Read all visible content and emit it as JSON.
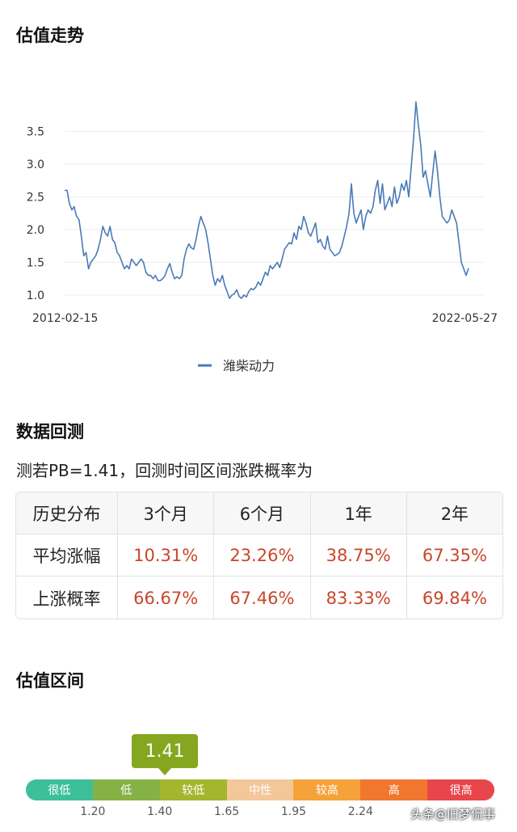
{
  "valuation_trend": {
    "title": "估值走势"
  },
  "backtest": {
    "title": "数据回测",
    "subtitle": "测若PB=1.41，回测时间区间涨跌概率为",
    "headers": [
      "历史分布",
      "3个月",
      "6个月",
      "1年",
      "2年"
    ],
    "rows": [
      {
        "label": "平均涨幅",
        "values": [
          "10.31%",
          "23.26%",
          "38.75%",
          "67.35%"
        ]
      },
      {
        "label": "上涨概率",
        "values": [
          "66.67%",
          "67.46%",
          "83.33%",
          "69.84%"
        ]
      }
    ]
  },
  "valuation_range": {
    "title": "估值区间",
    "current": "1.41",
    "segments": [
      {
        "label": "很低",
        "color": "#3dbf9b"
      },
      {
        "label": "低",
        "color": "#86b245"
      },
      {
        "label": "较低",
        "color": "#a3b62d"
      },
      {
        "label": "中性",
        "color": "#f3c79a"
      },
      {
        "label": "较高",
        "color": "#f6a23a"
      },
      {
        "label": "高",
        "color": "#f2772e"
      },
      {
        "label": "很高",
        "color": "#e8464a"
      }
    ],
    "ticks": [
      "1.20",
      "1.40",
      "1.65",
      "1.95",
      "2.24"
    ]
  },
  "watermark": "头条@旧梦侃事",
  "chart_data": {
    "type": "line",
    "title": "",
    "xlabel": "",
    "ylabel": "",
    "x_start": "2012-02-15",
    "x_end": "2022-05-27",
    "ylim": [
      0.9,
      4.0
    ],
    "yticks": [
      "1.0",
      "1.5",
      "2.0",
      "2.5",
      "3.0",
      "3.5"
    ],
    "grid": true,
    "legend": "bottom-center",
    "series": [
      {
        "name": "潍柴动力",
        "color": "#4a7ab8",
        "values": [
          2.6,
          2.6,
          2.4,
          2.3,
          2.35,
          2.2,
          2.15,
          1.9,
          1.6,
          1.65,
          1.4,
          1.5,
          1.55,
          1.6,
          1.7,
          1.85,
          2.05,
          1.95,
          1.9,
          2.05,
          1.85,
          1.8,
          1.65,
          1.6,
          1.5,
          1.4,
          1.45,
          1.4,
          1.55,
          1.5,
          1.45,
          1.5,
          1.55,
          1.5,
          1.35,
          1.3,
          1.3,
          1.25,
          1.3,
          1.22,
          1.22,
          1.25,
          1.3,
          1.4,
          1.48,
          1.35,
          1.25,
          1.28,
          1.25,
          1.3,
          1.55,
          1.7,
          1.78,
          1.72,
          1.7,
          1.85,
          2.05,
          2.2,
          2.1,
          2.0,
          1.8,
          1.55,
          1.3,
          1.15,
          1.25,
          1.2,
          1.3,
          1.15,
          1.05,
          0.95,
          1.0,
          1.02,
          1.08,
          0.98,
          0.95,
          1.0,
          0.97,
          1.05,
          1.1,
          1.08,
          1.12,
          1.2,
          1.15,
          1.25,
          1.35,
          1.3,
          1.45,
          1.4,
          1.45,
          1.5,
          1.42,
          1.55,
          1.7,
          1.75,
          1.8,
          1.78,
          1.95,
          1.85,
          2.05,
          2.0,
          2.2,
          2.1,
          1.95,
          1.9,
          2.0,
          2.1,
          1.8,
          1.85,
          1.75,
          1.7,
          1.9,
          1.7,
          1.65,
          1.6,
          1.62,
          1.65,
          1.75,
          1.9,
          2.05,
          2.25,
          2.7,
          2.25,
          2.1,
          2.2,
          2.3,
          2.0,
          2.2,
          2.3,
          2.25,
          2.35,
          2.6,
          2.75,
          2.4,
          2.7,
          2.3,
          2.4,
          2.5,
          2.35,
          2.65,
          2.4,
          2.5,
          2.7,
          2.6,
          2.75,
          2.5,
          2.95,
          3.4,
          3.95,
          3.6,
          3.3,
          2.8,
          2.9,
          2.7,
          2.5,
          2.85,
          3.2,
          2.9,
          2.5,
          2.2,
          2.15,
          2.1,
          2.15,
          2.3,
          2.2,
          2.1,
          1.8,
          1.5,
          1.4,
          1.3,
          1.41
        ]
      }
    ]
  }
}
